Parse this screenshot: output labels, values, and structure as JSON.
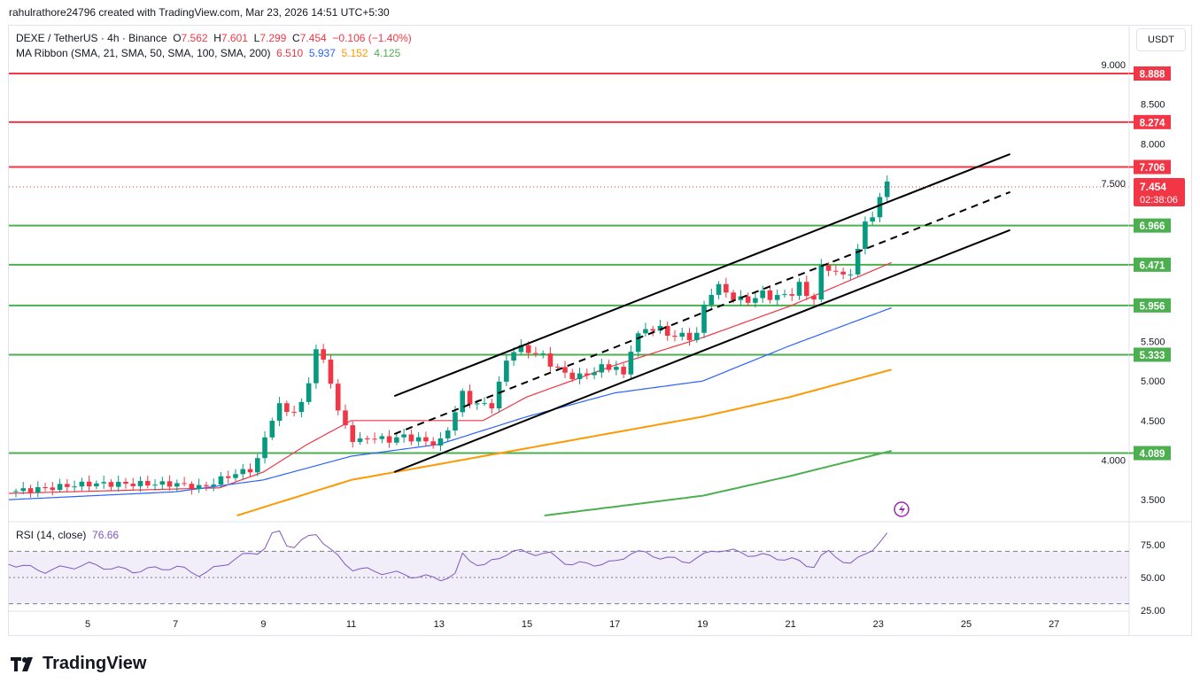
{
  "credit": "rahulrathore24796 created with TradingView.com, Mar 23, 2026 14:51 UTC+5:30",
  "legend": {
    "symbol": "DEXE / TetherUS · 4h · Binance",
    "o_label": "O",
    "o": "7.562",
    "h_label": "H",
    "h": "7.601",
    "l_label": "L",
    "l": "7.299",
    "c_label": "C",
    "c": "7.454",
    "change": "−0.106 (−1.40%)",
    "ma_title": "MA Ribbon (SMA, 21, SMA, 50, SMA, 100, SMA, 200)",
    "ma21": "6.510",
    "ma50": "5.937",
    "ma100": "5.152",
    "ma200": "4.125"
  },
  "currency_button": "USDT",
  "rsi_title": "RSI (14, close)",
  "rsi_value": "76.66",
  "brand": "TradingView",
  "colors": {
    "up": "#089981",
    "down": "#f23645",
    "ma21": "#f23645",
    "ma50": "#2962ff",
    "ma100": "#ff9800",
    "ma200": "#4caf50",
    "resistance": "#f23645",
    "support": "#4caf50",
    "rsi": "#7e57c2"
  },
  "chart_data": {
    "type": "candlestick",
    "ylim": [
      3.3,
      9.1
    ],
    "xlim_day": [
      3.2,
      28.7
    ],
    "y_ticks": [
      "9.000",
      "8.500",
      "8.000",
      "7.500",
      "5.500",
      "5.000",
      "4.500",
      "4.000",
      "3.500"
    ],
    "x_ticks": [
      "5",
      "7",
      "9",
      "11",
      "13",
      "15",
      "17",
      "19",
      "21",
      "23",
      "25",
      "27"
    ],
    "last_price": "7.454",
    "countdown": "02:38:06",
    "resistance_levels": [
      "8.888",
      "8.274",
      "7.706"
    ],
    "support_levels": [
      "6.966",
      "6.471",
      "5.956",
      "5.333",
      "4.089"
    ],
    "close_path": [
      [
        3.2,
        3.6
      ],
      [
        5,
        3.7
      ],
      [
        7,
        3.7
      ],
      [
        7.6,
        3.65
      ],
      [
        8.2,
        3.8
      ],
      [
        8.8,
        3.9
      ],
      [
        9.3,
        4.7
      ],
      [
        9.6,
        4.6
      ],
      [
        9.9,
        4.7
      ],
      [
        10.2,
        5.4
      ],
      [
        10.5,
        5.1
      ],
      [
        10.7,
        4.6
      ],
      [
        10.9,
        4.4
      ],
      [
        11.1,
        4.2
      ],
      [
        11.4,
        4.3
      ],
      [
        11.8,
        4.25
      ],
      [
        12.2,
        4.3
      ],
      [
        12.6,
        4.25
      ],
      [
        13,
        4.2
      ],
      [
        13.3,
        4.5
      ],
      [
        13.5,
        4.85
      ],
      [
        13.8,
        4.7
      ],
      [
        14.2,
        4.7
      ],
      [
        14.4,
        5.0
      ],
      [
        14.6,
        5.4
      ],
      [
        15,
        5.4
      ],
      [
        15.4,
        5.3
      ],
      [
        15.8,
        5.1
      ],
      [
        16.2,
        5.05
      ],
      [
        16.6,
        5.15
      ],
      [
        17,
        5.2
      ],
      [
        17.2,
        5.05
      ],
      [
        17.4,
        5.5
      ],
      [
        17.8,
        5.7
      ],
      [
        18.2,
        5.6
      ],
      [
        18.6,
        5.55
      ],
      [
        18.9,
        5.6
      ],
      [
        19.1,
        6.1
      ],
      [
        19.3,
        6.2
      ],
      [
        19.6,
        6.1
      ],
      [
        19.9,
        6.0
      ],
      [
        20.4,
        6.1
      ],
      [
        20.8,
        6.05
      ],
      [
        21.2,
        6.2
      ],
      [
        21.5,
        6.0
      ],
      [
        21.7,
        6.4
      ],
      [
        21.9,
        6.45
      ],
      [
        22.2,
        6.3
      ],
      [
        22.5,
        6.5
      ],
      [
        22.6,
        6.9
      ],
      [
        22.8,
        7.1
      ],
      [
        23,
        7.2
      ],
      [
        23.2,
        7.55
      ],
      [
        23.35,
        7.454
      ]
    ],
    "ma_series": [
      {
        "name": "SMA 21",
        "points": [
          [
            3.2,
            3.58
          ],
          [
            8,
            3.65
          ],
          [
            9,
            3.85
          ],
          [
            10,
            4.2
          ],
          [
            11,
            4.5
          ],
          [
            12.4,
            4.5
          ],
          [
            14,
            4.5
          ],
          [
            15,
            4.8
          ],
          [
            17,
            5.2
          ],
          [
            19,
            5.55
          ],
          [
            21,
            5.95
          ],
          [
            23.35,
            6.51
          ]
        ]
      },
      {
        "name": "SMA 50",
        "points": [
          [
            3.2,
            3.5
          ],
          [
            7,
            3.6
          ],
          [
            9,
            3.75
          ],
          [
            11,
            4.05
          ],
          [
            13,
            4.2
          ],
          [
            15,
            4.55
          ],
          [
            17,
            4.85
          ],
          [
            19,
            5.0
          ],
          [
            21,
            5.45
          ],
          [
            23.35,
            5.937
          ]
        ]
      },
      {
        "name": "SMA 100",
        "points": [
          [
            8.4,
            3.3
          ],
          [
            11,
            3.75
          ],
          [
            13,
            3.95
          ],
          [
            15,
            4.15
          ],
          [
            17,
            4.35
          ],
          [
            19,
            4.55
          ],
          [
            21,
            4.8
          ],
          [
            23.35,
            5.152
          ]
        ]
      },
      {
        "name": "SMA 200",
        "points": [
          [
            15.4,
            3.3
          ],
          [
            19,
            3.55
          ],
          [
            21,
            3.8
          ],
          [
            23.35,
            4.125
          ]
        ]
      }
    ],
    "channel": {
      "upper": [
        [
          11.98,
          4.81
        ],
        [
          26.0,
          7.87
        ]
      ],
      "lower": [
        [
          11.98,
          3.85
        ],
        [
          26.0,
          6.91
        ]
      ]
    },
    "rsi": {
      "ylim": [
        20,
        95
      ],
      "ticks": [
        "75.00",
        "50.00",
        "25.00"
      ],
      "bands": [
        70,
        30
      ],
      "points": [
        [
          3.2,
          61
        ],
        [
          4,
          55
        ],
        [
          5,
          60
        ],
        [
          6,
          55
        ],
        [
          7,
          58
        ],
        [
          7.6,
          52
        ],
        [
          8.4,
          65
        ],
        [
          9,
          71
        ],
        [
          9.3,
          88
        ],
        [
          9.6,
          72
        ],
        [
          10.2,
          84
        ],
        [
          10.6,
          68
        ],
        [
          11,
          57
        ],
        [
          12,
          53
        ],
        [
          13,
          49
        ],
        [
          13.4,
          52
        ],
        [
          13.5,
          68
        ],
        [
          14,
          58
        ],
        [
          14.6,
          70
        ],
        [
          15.5,
          68
        ],
        [
          16,
          60
        ],
        [
          17,
          61
        ],
        [
          17.4,
          70
        ],
        [
          18,
          66
        ],
        [
          18.6,
          62
        ],
        [
          19,
          66
        ],
        [
          19.3,
          72
        ],
        [
          20,
          68
        ],
        [
          21,
          64
        ],
        [
          21.5,
          58
        ],
        [
          21.8,
          70
        ],
        [
          22.4,
          60
        ],
        [
          22.7,
          68
        ],
        [
          23,
          76
        ],
        [
          23.2,
          82
        ],
        [
          23.35,
          76.66
        ]
      ]
    }
  }
}
